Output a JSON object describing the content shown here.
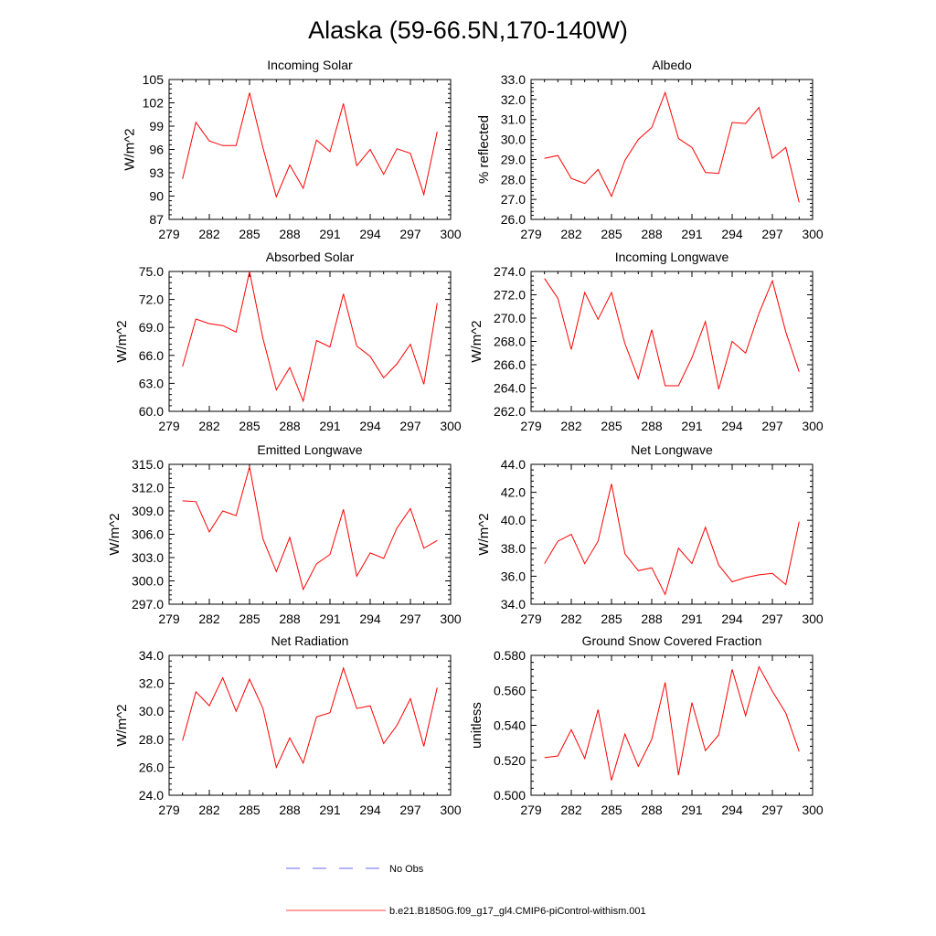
{
  "title": "Alaska (59-66.5N,170-140W)",
  "colors": {
    "model": "#ff0000",
    "obs": "#3333ff",
    "axis": "#000000"
  },
  "legend": {
    "obs_label": "No Obs",
    "model_label": "b.e21.B1850G.f09_g17_gl4.CMIP6-piControl-withism.001"
  },
  "chart_data": [
    {
      "type": "line",
      "title": "Incoming Solar",
      "ylabel": "W/m^2",
      "xlim": [
        279,
        300
      ],
      "ylim": [
        87,
        105
      ],
      "xticks": [
        "279",
        "282",
        "285",
        "288",
        "291",
        "294",
        "297",
        "300"
      ],
      "yticks": [
        "87",
        "90",
        "93",
        "96",
        "99",
        "102",
        "105"
      ],
      "x": [
        280,
        281,
        282,
        283,
        284,
        285,
        286,
        287,
        288,
        289,
        290,
        291,
        292,
        293,
        294,
        295,
        296,
        297,
        298,
        299
      ],
      "series": [
        {
          "values": [
            92.2,
            99.5,
            97.1,
            96.5,
            96.5,
            103.3,
            96.2,
            89.9,
            94.0,
            91.0,
            97.2,
            95.7,
            101.9,
            93.9,
            96.0,
            92.8,
            96.1,
            95.5,
            90.2,
            98.3
          ]
        }
      ]
    },
    {
      "type": "line",
      "title": "Albedo",
      "ylabel": "% reflected",
      "xlim": [
        279,
        300
      ],
      "ylim": [
        26.0,
        33.0
      ],
      "xticks": [
        "279",
        "282",
        "285",
        "288",
        "291",
        "294",
        "297",
        "300"
      ],
      "yticks": [
        "26.0",
        "27.0",
        "28.0",
        "29.0",
        "30.0",
        "31.0",
        "32.0",
        "33.0"
      ],
      "x": [
        280,
        281,
        282,
        283,
        284,
        285,
        286,
        287,
        288,
        289,
        290,
        291,
        292,
        293,
        294,
        295,
        296,
        297,
        298,
        299
      ],
      "series": [
        {
          "values": [
            29.05,
            29.2,
            28.05,
            27.8,
            28.5,
            27.15,
            28.95,
            30.0,
            30.6,
            32.35,
            30.05,
            29.6,
            28.35,
            28.3,
            30.85,
            30.8,
            31.6,
            29.05,
            29.6,
            26.85
          ]
        }
      ]
    },
    {
      "type": "line",
      "title": "Absorbed Solar",
      "ylabel": "W/m^2",
      "xlim": [
        279,
        300
      ],
      "ylim": [
        60.0,
        75.0
      ],
      "xticks": [
        "279",
        "282",
        "285",
        "288",
        "291",
        "294",
        "297",
        "300"
      ],
      "yticks": [
        "60.0",
        "63.0",
        "66.0",
        "69.0",
        "72.0",
        "75.0"
      ],
      "x": [
        280,
        281,
        282,
        283,
        284,
        285,
        286,
        287,
        288,
        289,
        290,
        291,
        292,
        293,
        294,
        295,
        296,
        297,
        298,
        299
      ],
      "series": [
        {
          "values": [
            64.8,
            69.9,
            69.4,
            69.2,
            68.5,
            75.0,
            67.8,
            62.3,
            64.7,
            61.1,
            67.6,
            66.9,
            72.6,
            67.0,
            65.9,
            63.6,
            65.1,
            67.2,
            62.9,
            71.6
          ]
        }
      ]
    },
    {
      "type": "line",
      "title": "Incoming Longwave",
      "ylabel": "W/m^2",
      "xlim": [
        279,
        300
      ],
      "ylim": [
        262.0,
        274.0
      ],
      "xticks": [
        "279",
        "282",
        "285",
        "288",
        "291",
        "294",
        "297",
        "300"
      ],
      "yticks": [
        "262.0",
        "264.0",
        "266.0",
        "268.0",
        "270.0",
        "272.0",
        "274.0"
      ],
      "x": [
        280,
        281,
        282,
        283,
        284,
        285,
        286,
        287,
        288,
        289,
        290,
        291,
        292,
        293,
        294,
        295,
        296,
        297,
        298,
        299
      ],
      "series": [
        {
          "values": [
            273.4,
            271.7,
            267.3,
            272.2,
            269.9,
            272.2,
            267.8,
            264.8,
            269.0,
            264.2,
            264.2,
            266.6,
            269.7,
            263.9,
            268.0,
            267.0,
            270.4,
            273.2,
            268.8,
            265.4
          ]
        }
      ]
    },
    {
      "type": "line",
      "title": "Emitted Longwave",
      "ylabel": "W/m^2",
      "xlim": [
        279,
        300
      ],
      "ylim": [
        297.0,
        315.0
      ],
      "xticks": [
        "279",
        "282",
        "285",
        "288",
        "291",
        "294",
        "297",
        "300"
      ],
      "yticks": [
        "297.0",
        "300.0",
        "303.0",
        "306.0",
        "309.0",
        "312.0",
        "315.0"
      ],
      "x": [
        280,
        281,
        282,
        283,
        284,
        285,
        286,
        287,
        288,
        289,
        290,
        291,
        292,
        293,
        294,
        295,
        296,
        297,
        298,
        299
      ],
      "series": [
        {
          "values": [
            310.3,
            310.2,
            306.3,
            309.0,
            308.4,
            314.7,
            305.4,
            301.2,
            305.6,
            298.9,
            302.2,
            303.4,
            309.2,
            300.6,
            303.6,
            302.9,
            306.8,
            309.3,
            304.2,
            305.2
          ]
        }
      ]
    },
    {
      "type": "line",
      "title": "Net Longwave",
      "ylabel": "W/m^2",
      "xlim": [
        279,
        300
      ],
      "ylim": [
        34.0,
        44.0
      ],
      "xticks": [
        "279",
        "282",
        "285",
        "288",
        "291",
        "294",
        "297",
        "300"
      ],
      "yticks": [
        "34.0",
        "36.0",
        "38.0",
        "40.0",
        "42.0",
        "44.0"
      ],
      "x": [
        280,
        281,
        282,
        283,
        284,
        285,
        286,
        287,
        288,
        289,
        290,
        291,
        292,
        293,
        294,
        295,
        296,
        297,
        298,
        299
      ],
      "series": [
        {
          "values": [
            36.9,
            38.5,
            39.0,
            36.9,
            38.5,
            42.6,
            37.6,
            36.4,
            36.6,
            34.7,
            38.0,
            36.9,
            39.5,
            36.8,
            35.6,
            35.9,
            36.1,
            36.2,
            35.4,
            39.9
          ]
        }
      ]
    },
    {
      "type": "line",
      "title": "Net Radiation",
      "ylabel": "W/m^2",
      "xlim": [
        279,
        300
      ],
      "ylim": [
        24.0,
        34.0
      ],
      "xticks": [
        "279",
        "282",
        "285",
        "288",
        "291",
        "294",
        "297",
        "300"
      ],
      "yticks": [
        "24.0",
        "26.0",
        "28.0",
        "30.0",
        "32.0",
        "34.0"
      ],
      "x": [
        280,
        281,
        282,
        283,
        284,
        285,
        286,
        287,
        288,
        289,
        290,
        291,
        292,
        293,
        294,
        295,
        296,
        297,
        298,
        299
      ],
      "series": [
        {
          "values": [
            27.9,
            31.4,
            30.4,
            32.4,
            30.0,
            32.3,
            30.2,
            26.0,
            28.1,
            26.3,
            29.6,
            29.9,
            33.1,
            30.2,
            30.4,
            27.7,
            29.0,
            30.9,
            27.5,
            31.7
          ]
        }
      ]
    },
    {
      "type": "line",
      "title": "Ground Snow Covered Fraction",
      "ylabel": "unitless",
      "xlim": [
        279,
        300
      ],
      "ylim": [
        0.5,
        0.58
      ],
      "xticks": [
        "279",
        "282",
        "285",
        "288",
        "291",
        "294",
        "297",
        "300"
      ],
      "yticks": [
        "0.500",
        "0.520",
        "0.540",
        "0.560",
        "0.580"
      ],
      "x": [
        280,
        281,
        282,
        283,
        284,
        285,
        286,
        287,
        288,
        289,
        290,
        291,
        292,
        293,
        294,
        295,
        296,
        297,
        298,
        299
      ],
      "series": [
        {
          "values": [
            0.5215,
            0.5225,
            0.5375,
            0.521,
            0.549,
            0.5085,
            0.535,
            0.5165,
            0.532,
            0.5645,
            0.5115,
            0.553,
            0.5255,
            0.5345,
            0.572,
            0.5455,
            0.5735,
            0.5595,
            0.547,
            0.525
          ]
        }
      ]
    }
  ]
}
